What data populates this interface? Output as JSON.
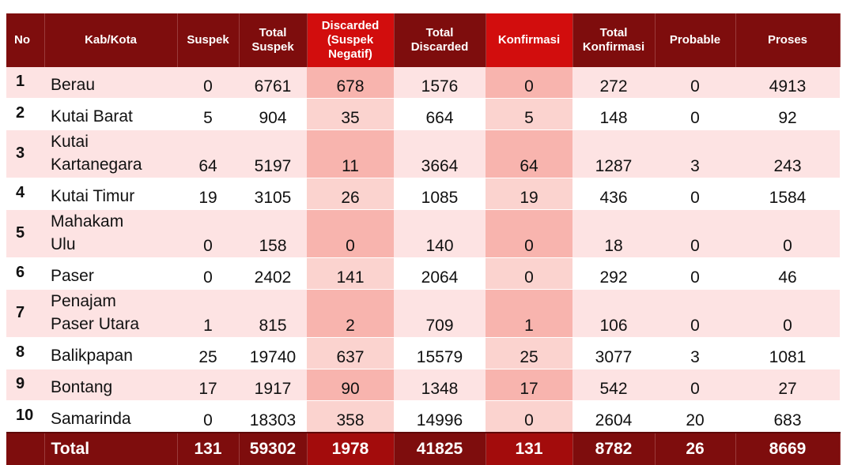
{
  "table": {
    "columns": [
      "No",
      "Kab/Kota",
      "Suspek",
      "Total Suspek",
      "Discarded (Suspek Negatif)",
      "Total Discarded",
      "Konfirmasi",
      "Total Konfirmasi",
      "Probable",
      "Proses"
    ],
    "header_lines": [
      [
        "No"
      ],
      [
        "Kab/Kota"
      ],
      [
        "Suspek"
      ],
      [
        "Total",
        "Suspek"
      ],
      [
        "Discarded",
        "(Suspek",
        "Negatif)"
      ],
      [
        "Total",
        "Discarded"
      ],
      [
        "Konfirmasi"
      ],
      [
        "Total",
        "Konfirmasi"
      ],
      [
        "Probable"
      ],
      [
        "Proses"
      ]
    ],
    "rows": [
      {
        "no": "1",
        "name_lines": [
          "Berau"
        ],
        "values": [
          "0",
          "6761",
          "678",
          "1576",
          "0",
          "272",
          "0",
          "4913"
        ]
      },
      {
        "no": "2",
        "name_lines": [
          "Kutai Barat"
        ],
        "values": [
          "5",
          "904",
          "35",
          "664",
          "5",
          "148",
          "0",
          "92"
        ]
      },
      {
        "no": "3",
        "name_lines": [
          "Kutai",
          "Kartanegara"
        ],
        "values": [
          "64",
          "5197",
          "11",
          "3664",
          "64",
          "1287",
          "3",
          "243"
        ]
      },
      {
        "no": "4",
        "name_lines": [
          "Kutai Timur"
        ],
        "values": [
          "19",
          "3105",
          "26",
          "1085",
          "19",
          "436",
          "0",
          "1584"
        ]
      },
      {
        "no": "5",
        "name_lines": [
          "Mahakam",
          "Ulu"
        ],
        "values": [
          "0",
          "158",
          "0",
          "140",
          "0",
          "18",
          "0",
          "0"
        ]
      },
      {
        "no": "6",
        "name_lines": [
          "Paser"
        ],
        "values": [
          "0",
          "2402",
          "141",
          "2064",
          "0",
          "292",
          "0",
          "46"
        ]
      },
      {
        "no": "7",
        "name_lines": [
          "Penajam",
          "Paser Utara"
        ],
        "values": [
          "1",
          "815",
          "2",
          "709",
          "1",
          "106",
          "0",
          "0"
        ]
      },
      {
        "no": "8",
        "name_lines": [
          "Balikpapan"
        ],
        "values": [
          "25",
          "19740",
          "637",
          "15579",
          "25",
          "3077",
          "3",
          "1081"
        ]
      },
      {
        "no": "9",
        "name_lines": [
          "Bontang"
        ],
        "values": [
          "17",
          "1917",
          "90",
          "1348",
          "17",
          "542",
          "0",
          "27"
        ]
      },
      {
        "no": "10",
        "name_lines": [
          "Samarinda"
        ],
        "values": [
          "0",
          "18303",
          "358",
          "14996",
          "0",
          "2604",
          "20",
          "683"
        ]
      }
    ],
    "total": {
      "label": "Total",
      "values": [
        "131",
        "59302",
        "1978",
        "41825",
        "131",
        "8782",
        "26",
        "8669"
      ]
    }
  },
  "colors": {
    "header": "#7e0d0d",
    "header_highlight": "#d20d0d",
    "row_band": "#fde3e3",
    "column_highlight": "#f8b4ae"
  }
}
